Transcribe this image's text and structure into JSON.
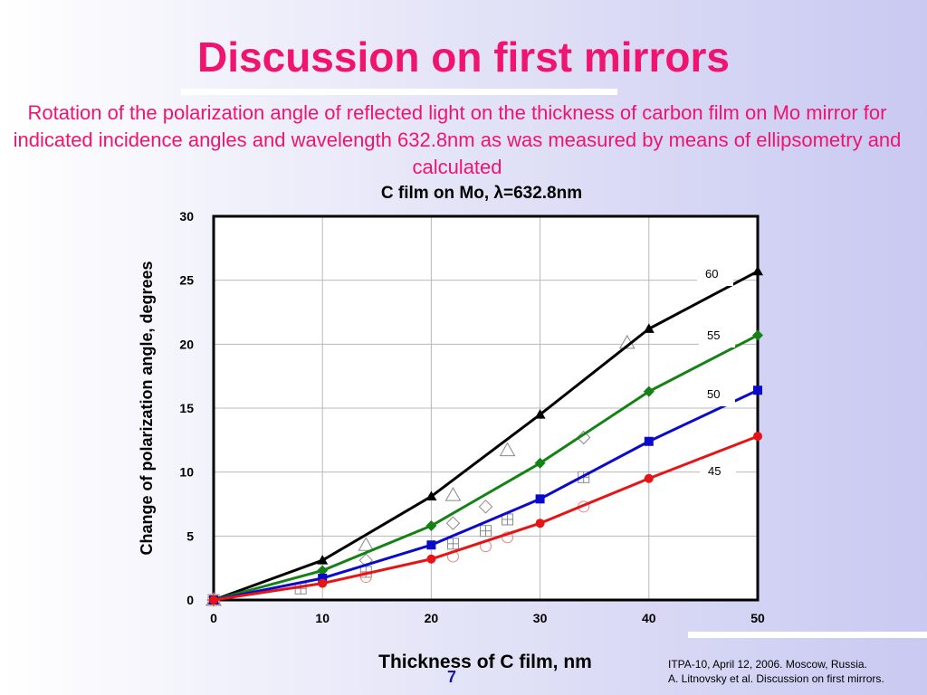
{
  "slide": {
    "title": "Discussion on first mirrors",
    "subtitle": "Rotation of the polarization angle of reflected light on the thickness of carbon film on Mo mirror for indicated incidence angles and wavelength 632.8nm as was measured by means of ellipsometry and calculated",
    "footer_line1": "ITPA-10, April 12, 2006. Moscow, Russia.",
    "footer_line2": "A. Litnovsky et al. Discussion on first mirrors.",
    "page_number": "7"
  },
  "chart_data": {
    "type": "line",
    "title": "C film on Mo, λ=632.8nm",
    "xlabel": "Thickness of C film, nm",
    "ylabel": "Change of polarization angle, degrees",
    "xlim": [
      0,
      50
    ],
    "ylim": [
      0,
      30
    ],
    "xticks": [
      0,
      10,
      20,
      30,
      40,
      50
    ],
    "yticks": [
      0,
      5,
      10,
      15,
      20,
      25,
      30
    ],
    "grid": true,
    "series": [
      {
        "name": "60",
        "kind": "calculated",
        "color": "#000000",
        "marker": "triangle",
        "x": [
          0,
          10,
          20,
          30,
          40,
          50
        ],
        "y": [
          0,
          3.1,
          8.1,
          14.5,
          21.2,
          25.7
        ]
      },
      {
        "name": "55",
        "kind": "calculated",
        "color": "#148214",
        "marker": "diamond",
        "x": [
          0,
          10,
          20,
          30,
          40,
          50
        ],
        "y": [
          0,
          2.3,
          5.8,
          10.7,
          16.3,
          20.7
        ]
      },
      {
        "name": "50",
        "kind": "calculated",
        "color": "#0a0acd",
        "marker": "square",
        "x": [
          0,
          10,
          20,
          30,
          40,
          50
        ],
        "y": [
          0,
          1.7,
          4.3,
          7.9,
          12.4,
          16.4
        ]
      },
      {
        "name": "45",
        "kind": "calculated",
        "color": "#e61414",
        "marker": "circle",
        "x": [
          0,
          10,
          20,
          30,
          40,
          50
        ],
        "y": [
          0,
          1.3,
          3.2,
          6.0,
          9.5,
          12.8
        ]
      },
      {
        "name": "60",
        "kind": "measured",
        "color": "#888888",
        "marker": "open-triangle",
        "x": [
          0,
          14,
          22,
          27,
          38
        ],
        "y": [
          0,
          4.3,
          8.2,
          11.7,
          20.1
        ]
      },
      {
        "name": "55",
        "kind": "measured",
        "color": "#888888",
        "marker": "open-diamond",
        "x": [
          0,
          14,
          22,
          25,
          34
        ],
        "y": [
          0,
          3.1,
          6.0,
          7.3,
          12.7
        ]
      },
      {
        "name": "50",
        "kind": "measured",
        "color": "#888888",
        "marker": "open-square-cross",
        "x": [
          0,
          8,
          14,
          22,
          25,
          27,
          34
        ],
        "y": [
          0,
          0.9,
          2.2,
          4.4,
          5.4,
          6.3,
          9.6
        ]
      },
      {
        "name": "45",
        "kind": "measured",
        "color": "#f08080",
        "marker": "open-circle",
        "x": [
          0,
          14,
          22,
          25,
          27,
          34
        ],
        "y": [
          0,
          1.8,
          3.4,
          4.2,
          4.9,
          7.3
        ]
      }
    ],
    "labels": [
      "60",
      "55",
      "50",
      "45"
    ]
  }
}
